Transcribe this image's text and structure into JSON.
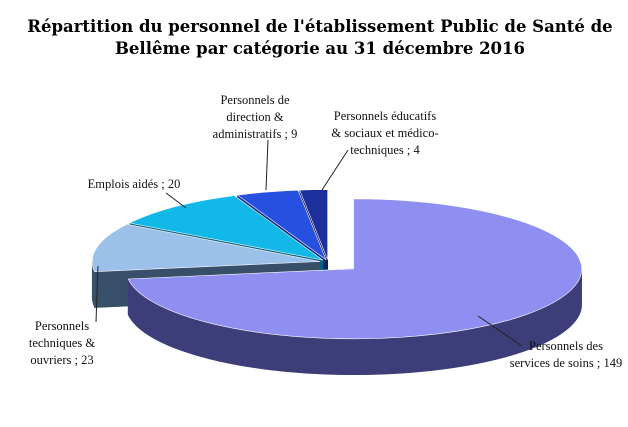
{
  "chart_data": {
    "type": "pie",
    "style": "3d-exploded",
    "title_lines": [
      "Répartition du personnel de l'établissement Public de Santé de",
      "Bellême par catégorie au 31 décembre 2016"
    ],
    "separator": " ; ",
    "slices": [
      {
        "name": "Personnels des services de soins",
        "value": 149,
        "label_lines": [
          "Personnels des",
          "services de soins ; 149"
        ],
        "top_color": "#8e8ff0",
        "side_color": "#3d3d7a"
      },
      {
        "name": "Personnels techniques & ouvriers",
        "value": 23,
        "label_lines": [
          "Personnels",
          "techniques &",
          "ouvriers ; 23"
        ],
        "top_color": "#9bc0ea",
        "side_color": "#374f68"
      },
      {
        "name": "Emplois aidés",
        "value": 20,
        "label_lines": [
          "Emplois aidés ; 20"
        ],
        "top_color": "#11b8e8",
        "side_color": "#05647e"
      },
      {
        "name": "Personnels de direction & administratifs",
        "value": 9,
        "label_lines": [
          "Personnels de",
          "direction &",
          "administratifs ; 9"
        ],
        "top_color": "#2850e0",
        "side_color": "#112a82"
      },
      {
        "name": "Personnels éducatifs & sociaux et médico-techniques",
        "value": 4,
        "label_lines": [
          "Personnels éducatifs",
          "& sociaux et médico-",
          "techniques ; 4"
        ],
        "top_color": "#1c2f9c",
        "side_color": "#0b1552"
      }
    ],
    "legend": "none"
  }
}
